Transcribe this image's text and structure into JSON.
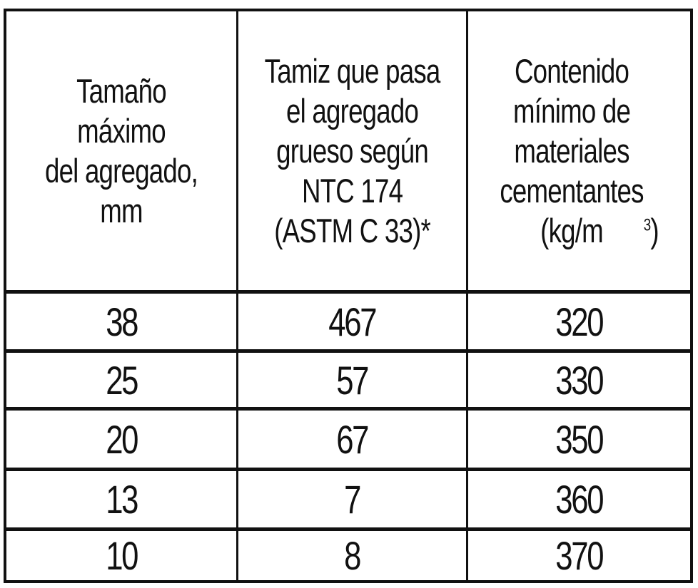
{
  "table": {
    "headers": [
      "Tamaño máximo\ndel agregado,\nmm",
      "Tamiz que pasa\nel agregado\ngrueso según\nNTC 174\n(ASTM C 33)*",
      "Contenido\nmínimo de\nmateriales\ncementantes\n(kg/m"
    ],
    "header_unit_superscript": "3",
    "header_unit_close": ")",
    "rows": [
      [
        "38",
        "467",
        "320"
      ],
      [
        "25",
        "57",
        "330"
      ],
      [
        "20",
        "67",
        "350"
      ],
      [
        "13",
        "7",
        "360"
      ],
      [
        "10",
        "8",
        "370"
      ]
    ]
  }
}
